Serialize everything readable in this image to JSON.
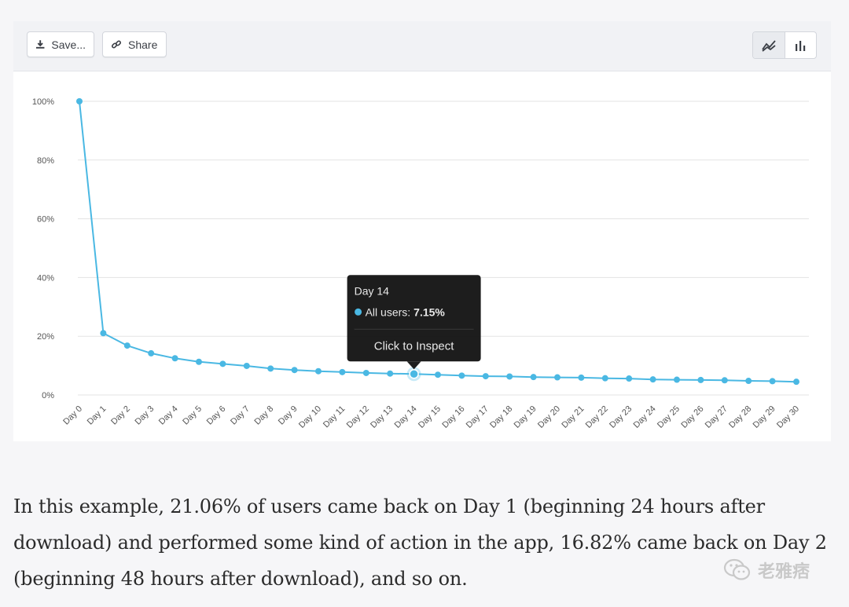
{
  "toolbar": {
    "save_label": "Save...",
    "share_label": "Share",
    "icons": {
      "save": "download-icon",
      "share": "link-icon",
      "line_toggle": "line-chart-icon",
      "bar_toggle": "bar-chart-icon"
    }
  },
  "tooltip": {
    "title": "Day 14",
    "series_label": "All users:",
    "series_value": "7.15%",
    "action": "Click to Inspect"
  },
  "chart_data": {
    "type": "line",
    "categories": [
      "Day 0",
      "Day 1",
      "Day 2",
      "Day 3",
      "Day 4",
      "Day 5",
      "Day 6",
      "Day 7",
      "Day 8",
      "Day 9",
      "Day 10",
      "Day 11",
      "Day 12",
      "Day 13",
      "Day 14",
      "Day 15",
      "Day 16",
      "Day 17",
      "Day 18",
      "Day 19",
      "Day 20",
      "Day 21",
      "Day 22",
      "Day 23",
      "Day 24",
      "Day 25",
      "Day 26",
      "Day 27",
      "Day 28",
      "Day 29",
      "Day 30"
    ],
    "series": [
      {
        "name": "All users",
        "values": [
          100,
          21.06,
          16.82,
          14.2,
          12.5,
          11.3,
          10.6,
          9.9,
          9.0,
          8.5,
          8.1,
          7.8,
          7.5,
          7.3,
          7.15,
          6.9,
          6.6,
          6.4,
          6.3,
          6.1,
          6.0,
          5.9,
          5.7,
          5.6,
          5.3,
          5.2,
          5.1,
          5.0,
          4.8,
          4.7,
          4.5
        ]
      }
    ],
    "yticks": [
      "0%",
      "20%",
      "40%",
      "60%",
      "80%",
      "100%"
    ],
    "ylim": [
      0,
      100
    ],
    "highlighted_category": "Day 14",
    "grid": true,
    "line_color": "#4ab8e3"
  },
  "caption": "In this example, 21.06% of users came back on Day 1 (beginning 24 hours after download) and performed some kind of action in the app, 16.82% came back on Day 2 (beginning 48 hours after download), and so on.",
  "watermark": {
    "text": "老雅痞",
    "icon": "wechat-icon"
  }
}
